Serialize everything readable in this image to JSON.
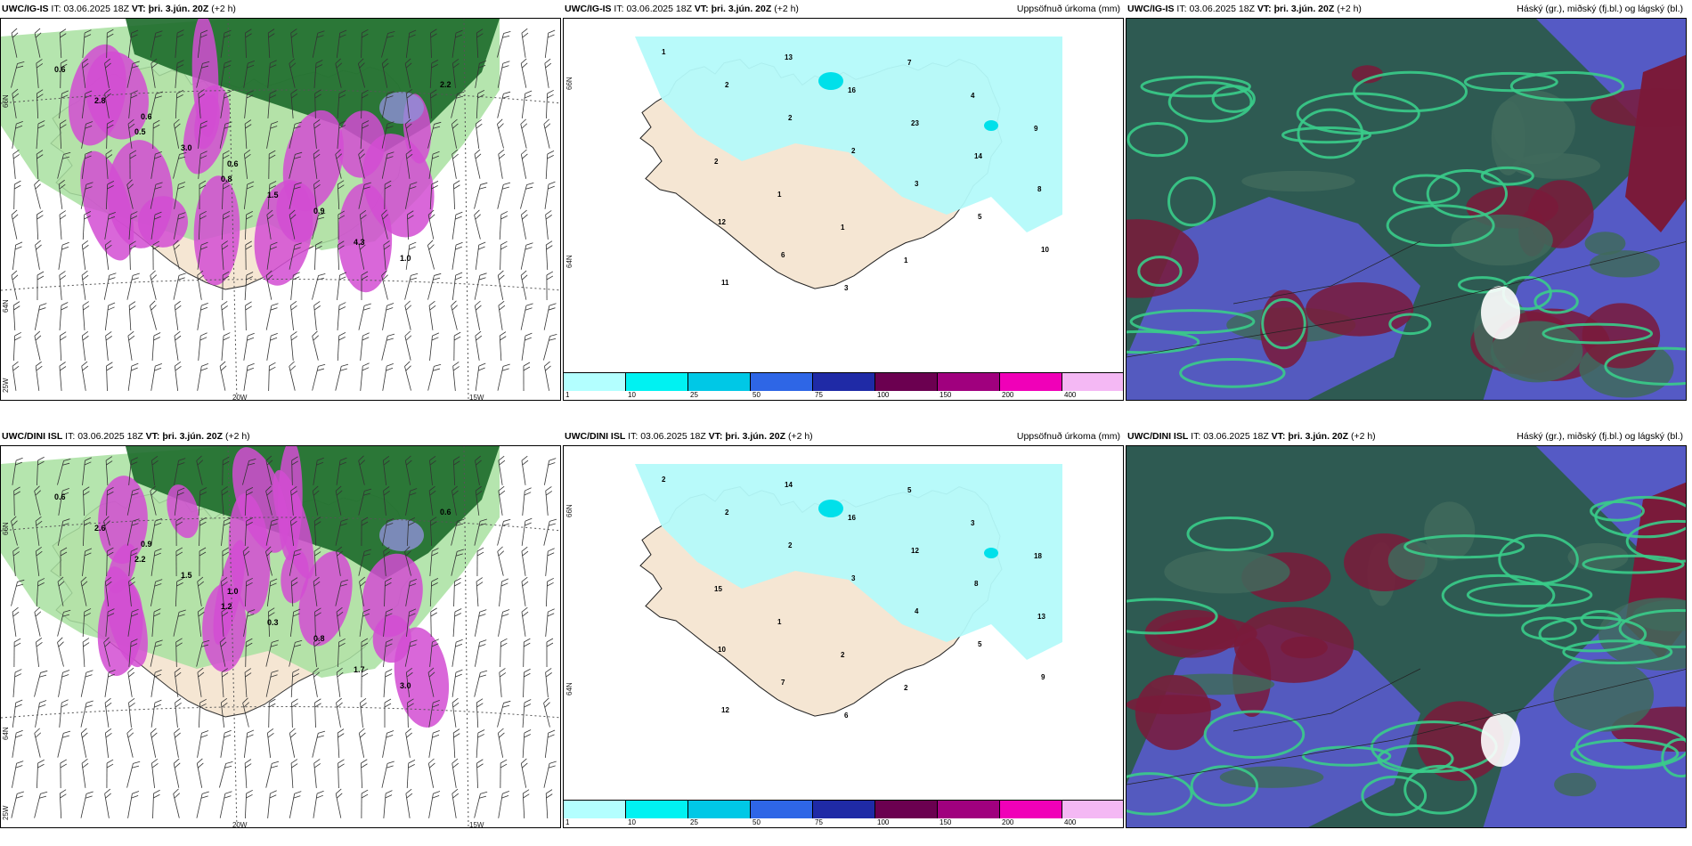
{
  "panels": [
    {
      "row": 0,
      "col": 0,
      "model": "UWC/IG-IS",
      "it_label": "IT:",
      "it_value": "03.06.2025 18Z",
      "vt_label": "VT:",
      "vt_value": "þri. 3.jún. 20Z",
      "offset": "(+2 h)",
      "right_title": "",
      "type": "wind",
      "grid_labels": [
        "66N",
        "64N",
        "25W",
        "20W",
        "15W"
      ],
      "value_labels": [
        "0.6",
        "0.6",
        "0.6",
        "0.9",
        "1.0",
        "2.8",
        "3.0",
        "1.5",
        "4.3",
        "2.2",
        "0.5",
        "0.8"
      ]
    },
    {
      "row": 0,
      "col": 1,
      "model": "UWC/IG-IS",
      "it_label": "IT:",
      "it_value": "03.06.2025 18Z",
      "vt_label": "VT:",
      "vt_value": "þri. 3.jún. 20Z",
      "offset": "(+2 h)",
      "right_title": "Uppsöfnuð úrkoma (mm)",
      "type": "precip",
      "grid_labels": [
        "66N",
        "64N"
      ],
      "value_labels": [
        "1",
        "2",
        "2",
        "2",
        "3",
        "5",
        "10",
        "11",
        "13",
        "16",
        "23",
        "14",
        "8",
        "12",
        "6",
        "3",
        "7",
        "4",
        "9",
        "2",
        "1",
        "1",
        "1"
      ]
    },
    {
      "row": 0,
      "col": 2,
      "model": "UWC/IG-IS",
      "it_label": "IT:",
      "it_value": "03.06.2025 18Z",
      "vt_label": "VT:",
      "vt_value": "þri. 3.jún. 20Z",
      "offset": "(+2 h)",
      "right_title": "Háský (gr.), miðský (fj.bl.) og lágský (bl.)",
      "type": "cloud"
    },
    {
      "row": 1,
      "col": 0,
      "model": "UWC/DINI ISL",
      "it_label": "IT:",
      "it_value": "03.06.2025 18Z",
      "vt_label": "VT:",
      "vt_value": "þri. 3.jún. 20Z",
      "offset": "(+2 h)",
      "right_title": "",
      "type": "wind",
      "grid_labels": [
        "66N",
        "64N",
        "25W",
        "20W",
        "15W"
      ],
      "value_labels": [
        "0.6",
        "0.9",
        "1.0",
        "0.8",
        "3.0",
        "2.6",
        "1.5",
        "0.3",
        "1.7",
        "0.6",
        "2.2",
        "1.2"
      ]
    },
    {
      "row": 1,
      "col": 1,
      "model": "UWC/DINI ISL",
      "it_label": "IT:",
      "it_value": "03.06.2025 18Z",
      "vt_label": "VT:",
      "vt_value": "þri. 3.jún. 20Z",
      "offset": "(+2 h)",
      "right_title": "Uppsöfnuð úrkoma (mm)",
      "type": "precip",
      "grid_labels": [
        "66N",
        "64N"
      ],
      "value_labels": [
        "2",
        "2",
        "2",
        "3",
        "4",
        "5",
        "9",
        "12",
        "14",
        "16",
        "12",
        "8",
        "13",
        "10",
        "7",
        "6",
        "5",
        "3",
        "18",
        "15",
        "1",
        "2",
        "2"
      ]
    },
    {
      "row": 1,
      "col": 2,
      "model": "UWC/DINI ISL",
      "it_label": "IT:",
      "it_value": "03.06.2025 18Z",
      "vt_label": "VT:",
      "vt_value": "þri. 3.jún. 20Z",
      "offset": "(+2 h)",
      "right_title": "Háský (gr.), miðský (fj.bl.) og lágský (bl.)",
      "type": "cloud"
    }
  ],
  "colorbar": {
    "labels": [
      "1",
      "10",
      "25",
      "50",
      "75",
      "100",
      "150",
      "200",
      "400"
    ],
    "colors": [
      "#b3ffff",
      "#00f2f2",
      "#00c8e6",
      "#2e66e6",
      "#1f2aa6",
      "#6b0050",
      "#a0007e",
      "#f000b8",
      "#f4b8f4"
    ]
  },
  "colors": {
    "land": "#f5e6d3",
    "precip_light": "#b4fafa",
    "green_dark": "#1c6a2a",
    "green_light": "#a8e0a0",
    "magenta": "#d24cd2",
    "cloud_dark": "#2e5a52",
    "cloud_red": "#7a1a3a",
    "cloud_blue": "#5a5ad2",
    "cloud_green": "#3acc8a"
  }
}
